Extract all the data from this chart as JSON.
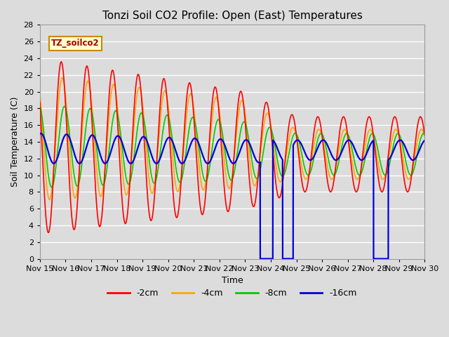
{
  "title": "Tonzi Soil CO2 Profile: Open (East) Temperatures",
  "xlabel": "Time",
  "ylabel": "Soil Temperature (C)",
  "ylim": [
    0,
    28
  ],
  "xlim": [
    0,
    360
  ],
  "annotation": "TZ_soilco2",
  "bg_color": "#dcdcdc",
  "grid_color": "#ffffff",
  "line_colors": {
    "-2cm": "#ff0000",
    "-4cm": "#ffa500",
    "-8cm": "#00cc00",
    "-16cm": "#0000dd"
  },
  "legend_labels": [
    "-2cm",
    "-4cm",
    "-8cm",
    "-16cm"
  ],
  "x_tick_labels": [
    "Nov 15",
    "Nov 16",
    "Nov 17",
    "Nov 18",
    "Nov 19",
    "Nov 20",
    "Nov 21",
    "Nov 22",
    "Nov 23",
    "Nov 24",
    "Nov 25",
    "Nov 26",
    "Nov 27",
    "Nov 28",
    "Nov 29",
    "Nov 30"
  ],
  "tick_positions": [
    0,
    24,
    48,
    72,
    96,
    120,
    144,
    168,
    192,
    216,
    240,
    264,
    288,
    312,
    336,
    360
  ],
  "yticks": [
    0,
    2,
    4,
    6,
    8,
    10,
    12,
    14,
    16,
    18,
    20,
    22,
    24,
    26,
    28
  ]
}
